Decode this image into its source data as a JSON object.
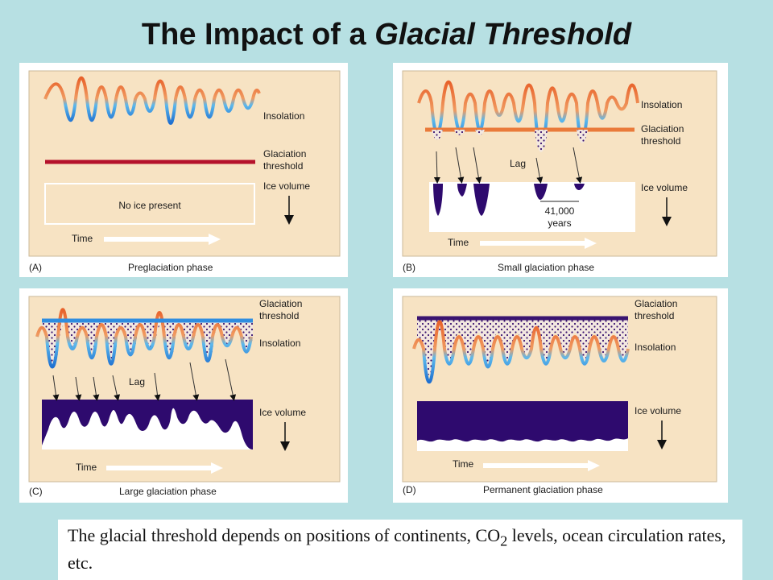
{
  "title": {
    "prefix": "The Impact of a ",
    "emphasis": "Glacial Threshold"
  },
  "labels": {
    "insolation": "Insolation",
    "glaciation_line1": "Glaciation",
    "glaciation_line2": "threshold",
    "ice_volume": "Ice volume",
    "time": "Time",
    "lag": "Lag"
  },
  "panels": [
    {
      "letter": "(A)",
      "phase": "Preglaciation phase",
      "box_text": "No ice present"
    },
    {
      "letter": "(B)",
      "phase": "Small glaciation phase",
      "span_line1": "41,000",
      "span_line2": "years"
    },
    {
      "letter": "(C)",
      "phase": "Large glaciation phase"
    },
    {
      "letter": "(D)",
      "phase": "Permanent glaciation phase"
    }
  ],
  "caption": {
    "before_sub": "The glacial threshold depends on positions of continents, CO",
    "sub": "2",
    "after_sub": " levels, ocean circulation rates, etc."
  },
  "colors": {
    "background": "#b7e0e3",
    "panel_fill": "#f7e3c3",
    "insolation_warm": "#e8612a",
    "insolation_cold": "#1e9fe0",
    "threshold_A": "#b5122b",
    "threshold_B": "#ea7a3a",
    "threshold_C": "#2f8de0",
    "threshold_D": "#3a1470",
    "ice": "#2e0a6e"
  }
}
